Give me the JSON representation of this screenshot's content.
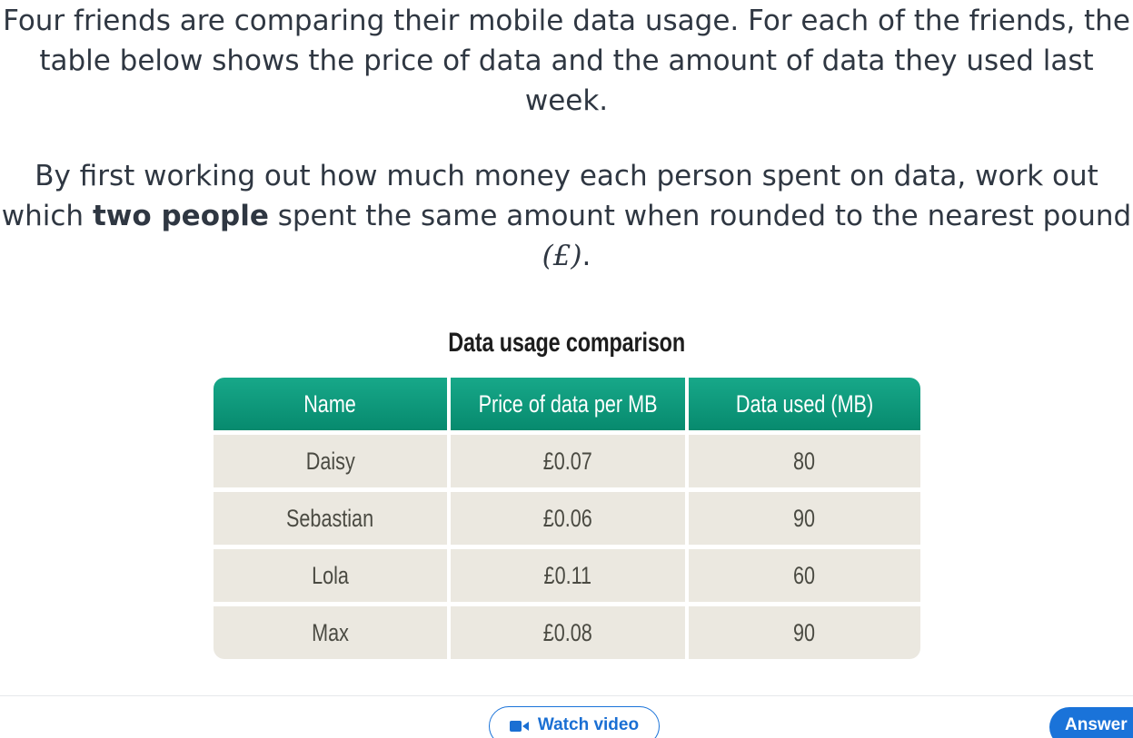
{
  "question": {
    "intro_text": "Four friends are comparing their mobile data usage. For each of the friends, the table below shows the price of data and the amount of data they used last week.",
    "instruction_before": "By first working out how much money each person spent on data, work out which ",
    "instruction_bold": "two people",
    "instruction_after": " spent the same amount when rounded to the nearest pound ",
    "currency_symbol": "(£)",
    "instruction_end": "."
  },
  "table": {
    "title": "Data usage comparison",
    "headers": [
      "Name",
      "Price of data per MB",
      "Data used (MB)"
    ],
    "rows": [
      [
        "Daisy",
        "£0.07",
        "80"
      ],
      [
        "Sebastian",
        "£0.06",
        "90"
      ],
      [
        "Lola",
        "£0.11",
        "60"
      ],
      [
        "Max",
        "£0.08",
        "90"
      ]
    ],
    "colors": {
      "header_bg": "#0f9a7c",
      "cell_bg": "#ebe8e0"
    }
  },
  "footer": {
    "watch_video_label": "Watch video",
    "watch_video_icon": "video-camera-icon",
    "answer_label": "Answer",
    "accent_color": "#1a73d9"
  }
}
